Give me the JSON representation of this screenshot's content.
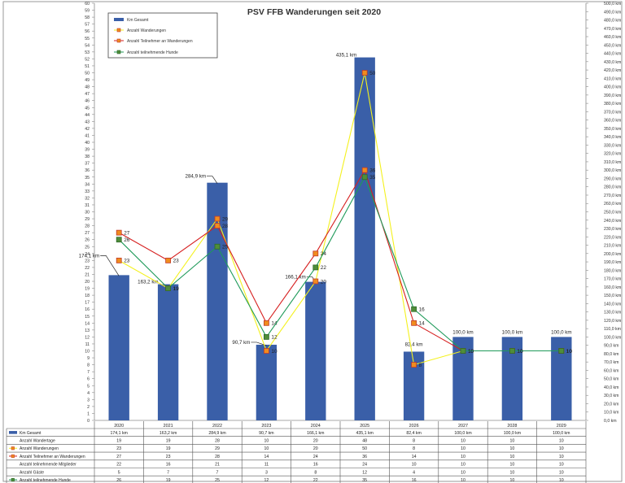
{
  "chart_data": {
    "type": "bar",
    "title": "PSV FFB Wanderungen seit 2020",
    "categories": [
      "2020",
      "2021",
      "2022",
      "2023",
      "2024",
      "2025",
      "2026",
      "2027",
      "2028",
      "2029"
    ],
    "y_left_range": [
      0,
      60
    ],
    "y_right_range": [
      0,
      500
    ],
    "y_right_unit": "km",
    "grid": false,
    "legend_position": "top-left",
    "colors": {
      "km": "#3a5fa8",
      "wanderungen": "#f4f11e",
      "teilnehmer": "#d62020",
      "hunde": "#1f9a5a",
      "marker_fill": "#f08c1e",
      "marker_green": "#4f8d3a"
    },
    "legend": [
      "Km Gesamt",
      "Anzahl Wanderungen",
      "Anzahl Teilnehmer an Wanderungen",
      "Anzahl teilnehmende Hunde"
    ],
    "series": [
      {
        "name": "Km Gesamt",
        "axis": "right",
        "kind": "bar",
        "values": [
          174.1,
          163.2,
          284.9,
          90.7,
          166.1,
          435.1,
          82.4,
          100.0,
          100.0,
          100.0
        ],
        "labels": [
          "174,1 km",
          "163,2 km",
          "284,9 km",
          "90,7 km",
          "166,1 km",
          "435,1 km",
          "82,4 km",
          "100,0 km",
          "100,0 km",
          "100,0 km"
        ]
      },
      {
        "name": "Anzahl Wanderungen",
        "axis": "left",
        "kind": "line",
        "values": [
          23,
          19,
          29,
          10,
          20,
          50,
          8,
          10,
          10,
          10
        ]
      },
      {
        "name": "Anzahl Teilnehmer an Wanderungen",
        "axis": "left",
        "kind": "line",
        "values": [
          27,
          23,
          28,
          14,
          24,
          36,
          14,
          10,
          10,
          10
        ]
      },
      {
        "name": "Anzahl teilnehmende Hunde",
        "axis": "left",
        "kind": "line",
        "values": [
          26,
          19,
          25,
          12,
          22,
          35,
          16,
          10,
          10,
          10
        ]
      }
    ],
    "table": {
      "rows": [
        {
          "label": "Km Gesamt",
          "key": "km",
          "values": [
            "174,1 km",
            "163,2 km",
            "284,9 km",
            "90,7 km",
            "166,1 km",
            "435,1 km",
            "82,4 km",
            "100,0 km",
            "100,0 km",
            "100,0 km"
          ]
        },
        {
          "label": "Anzahl Wandertage",
          "key": "plain",
          "values": [
            "19",
            "19",
            "28",
            "10",
            "20",
            "48",
            "8",
            "10",
            "10",
            "10"
          ]
        },
        {
          "label": "Anzahl Wanderungen",
          "key": "wanderungen",
          "values": [
            "23",
            "19",
            "29",
            "10",
            "20",
            "50",
            "8",
            "10",
            "10",
            "10"
          ]
        },
        {
          "label": "Anzahl Teilnehmer an Wanderungen",
          "key": "teilnehmer",
          "values": [
            "27",
            "23",
            "28",
            "14",
            "24",
            "36",
            "14",
            "10",
            "10",
            "10"
          ]
        },
        {
          "label": "Anzahl teilnehmende Mitglieder",
          "key": "plain",
          "values": [
            "22",
            "16",
            "21",
            "11",
            "16",
            "24",
            "10",
            "10",
            "10",
            "10"
          ]
        },
        {
          "label": "Anzahl Gäste",
          "key": "plain",
          "values": [
            "5",
            "7",
            "7",
            "3",
            "8",
            "12",
            "4",
            "10",
            "10",
            "10"
          ]
        },
        {
          "label": "Anzahl teilnehmende Hunde",
          "key": "hunde",
          "values": [
            "26",
            "19",
            "25",
            "12",
            "22",
            "35",
            "16",
            "10",
            "10",
            "10"
          ]
        }
      ]
    }
  }
}
